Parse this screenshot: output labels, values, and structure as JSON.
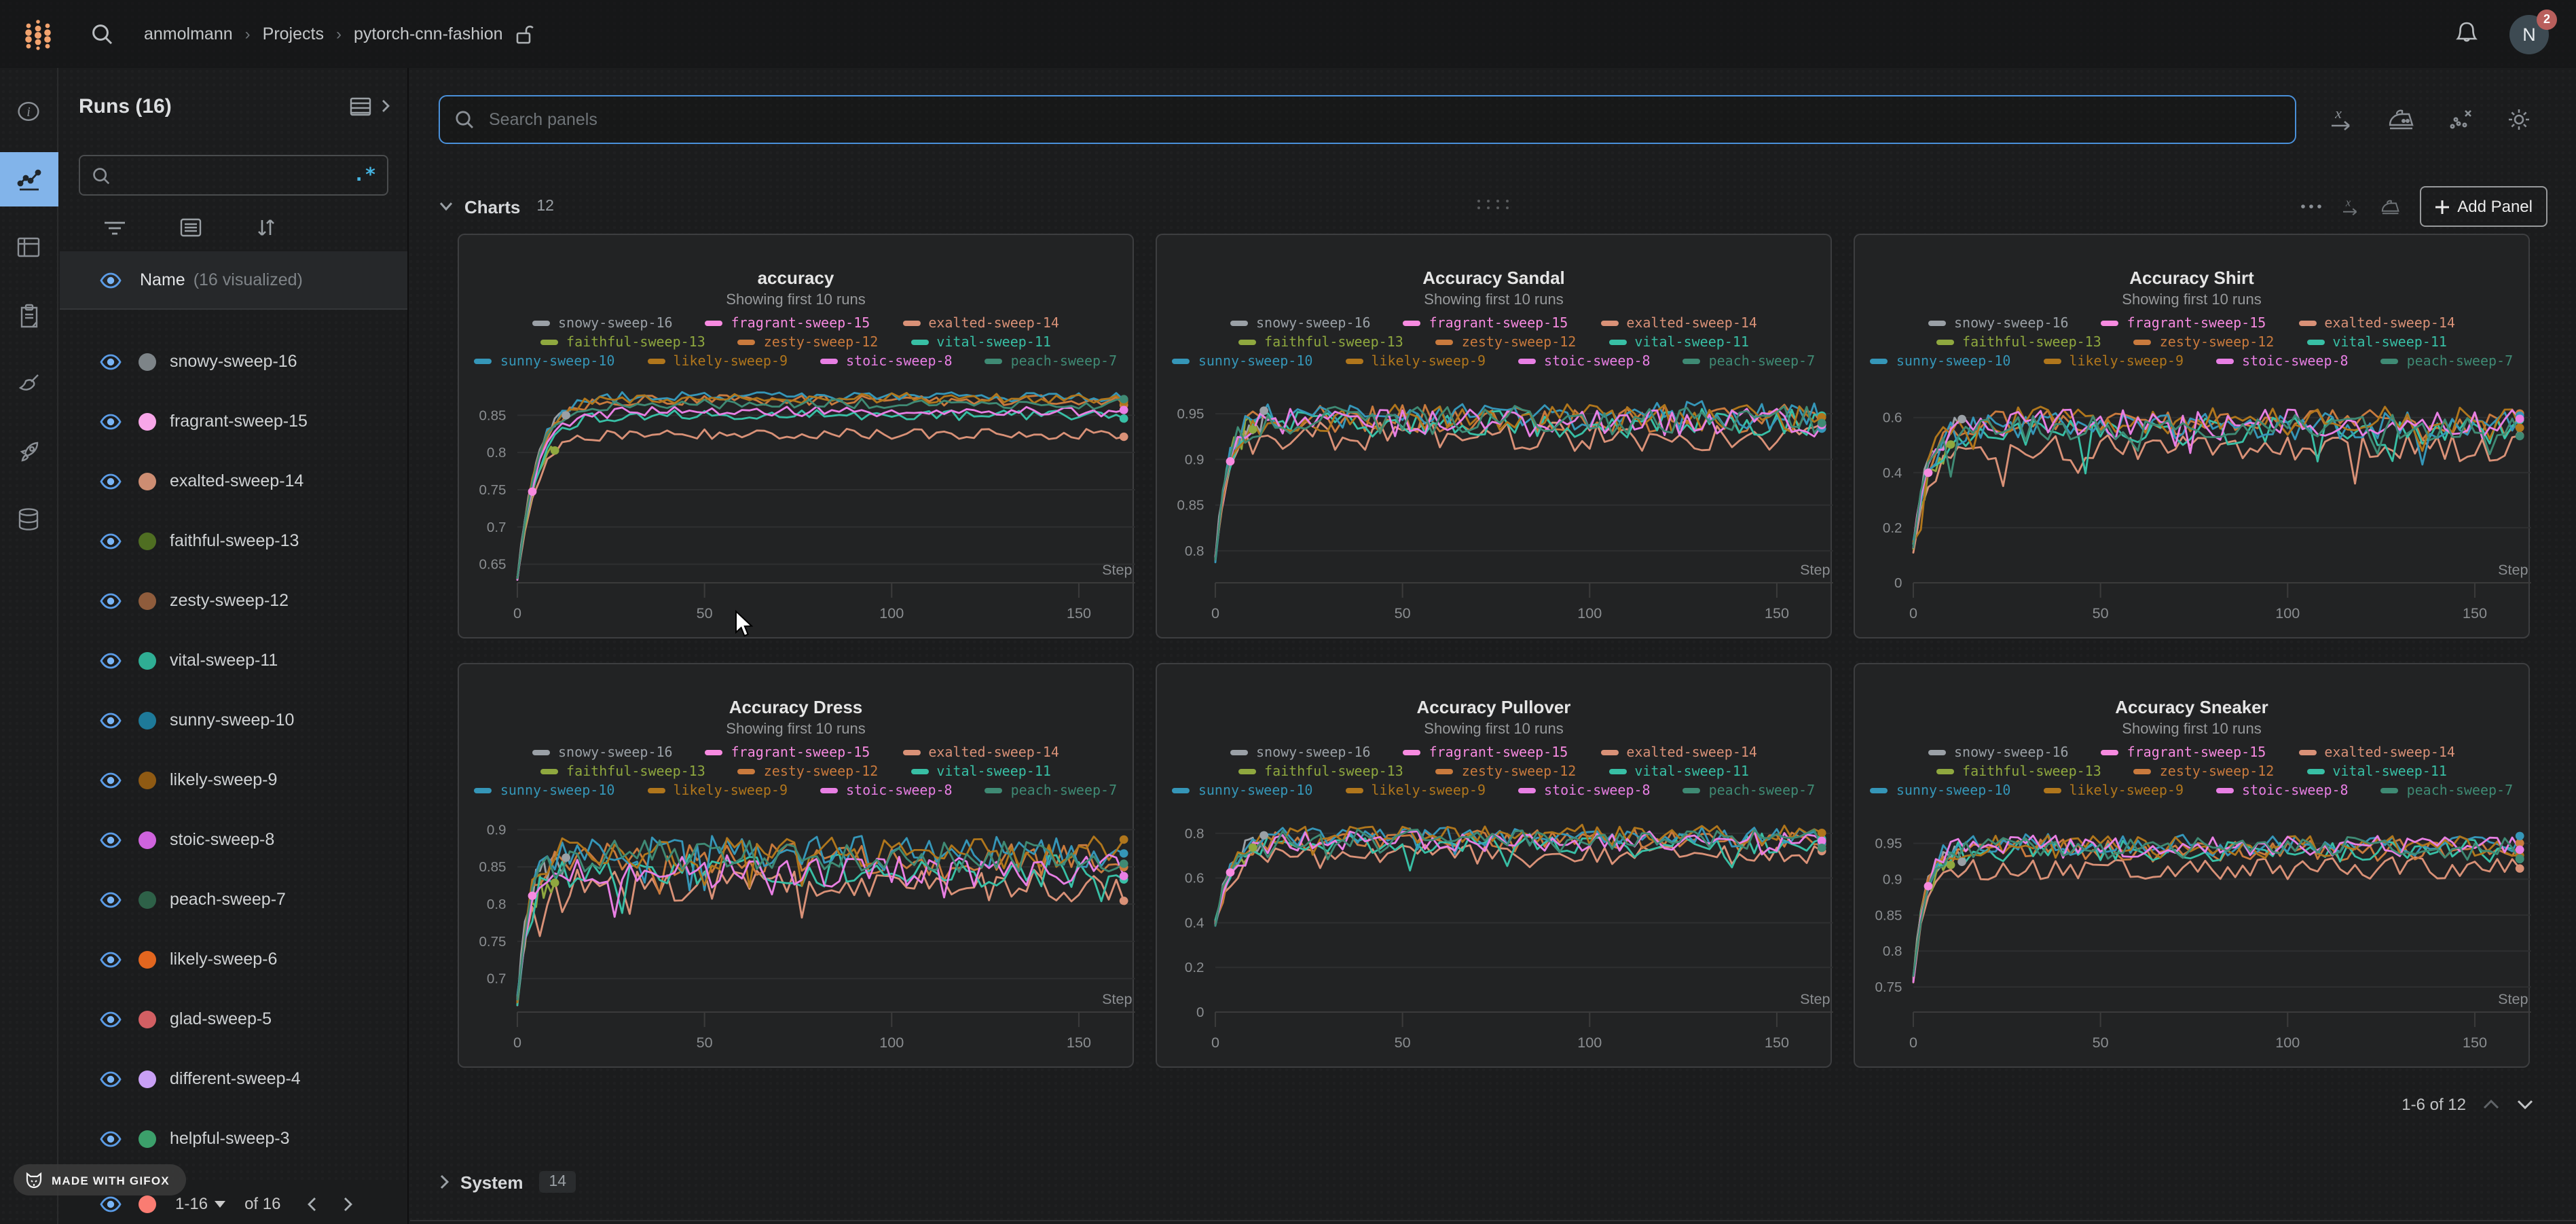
{
  "topbar": {
    "breadcrumb": [
      "anmolmann",
      "Projects",
      "pytorch-cnn-fashion"
    ],
    "notifications_badge": "2",
    "avatar_initial": "N"
  },
  "rail": {
    "items": [
      "overview",
      "workspace",
      "table",
      "reports",
      "sweeps",
      "launch",
      "artifacts"
    ],
    "active": "workspace",
    "active_color": "#82b4ea"
  },
  "sidebar": {
    "title": "Runs (16)",
    "regex_toggle": ".*",
    "name_header": {
      "label": "Name",
      "visualized": "(16 visualized)"
    },
    "runs": [
      {
        "name": "snowy-sweep-16",
        "color": "#7d8488"
      },
      {
        "name": "fragrant-sweep-15",
        "color": "#f8a6e9"
      },
      {
        "name": "exalted-sweep-14",
        "color": "#cd8d72"
      },
      {
        "name": "faithful-sweep-13",
        "color": "#4f6e22"
      },
      {
        "name": "zesty-sweep-12",
        "color": "#8f5c3c"
      },
      {
        "name": "vital-sweep-11",
        "color": "#2fae94"
      },
      {
        "name": "sunny-sweep-10",
        "color": "#1e7a99"
      },
      {
        "name": "likely-sweep-9",
        "color": "#8f5a13"
      },
      {
        "name": "stoic-sweep-8",
        "color": "#cf63dd"
      },
      {
        "name": "peach-sweep-7",
        "color": "#2e6148"
      },
      {
        "name": "likely-sweep-6",
        "color": "#e2661f"
      },
      {
        "name": "glad-sweep-5",
        "color": "#d25f63"
      },
      {
        "name": "different-sweep-4",
        "color": "#c9a0f5"
      },
      {
        "name": "helpful-sweep-3",
        "color": "#3ca06b"
      }
    ],
    "partial_run_color": "#fa7c72",
    "footer": {
      "page": "1-16",
      "of": "of 16"
    }
  },
  "main": {
    "search_placeholder": "Search panels",
    "sections": {
      "charts": {
        "label": "Charts",
        "count": "12",
        "add_panel_label": "Add Panel"
      },
      "system": {
        "label": "System",
        "count": "14"
      }
    },
    "pagination": "1-6 of 12"
  },
  "watermark": "MADE WITH GIFOX",
  "chart_data": {
    "type": "line",
    "xlabel": "Step",
    "x_ticks": [
      0,
      50,
      100,
      150
    ],
    "x_max": 165,
    "legend_position": "top",
    "grid": true,
    "runs": [
      "snowy-sweep-16",
      "fragrant-sweep-15",
      "exalted-sweep-14",
      "faithful-sweep-13",
      "zesty-sweep-12",
      "vital-sweep-11",
      "sunny-sweep-10",
      "likely-sweep-9",
      "stoic-sweep-8",
      "peach-sweep-7"
    ],
    "colors": [
      "#9aa0a6",
      "#f78ae0",
      "#d99177",
      "#8fa83f",
      "#c97a3d",
      "#38bfa5",
      "#3596b8",
      "#b0761c",
      "#e87fe4",
      "#3f8a74"
    ],
    "legend_rows": [
      [
        0,
        1,
        2
      ],
      [
        3,
        4,
        5
      ],
      [
        6,
        7,
        8,
        9
      ]
    ],
    "end_steps": [
      13,
      4,
      162,
      10,
      162,
      162,
      162,
      162,
      162,
      162
    ],
    "charts": [
      {
        "title": "accuracy",
        "subtitle": "Showing first 10 runs",
        "ylim": [
          0.625,
          0.895
        ],
        "yticks": [
          0.65,
          0.7,
          0.75,
          0.8,
          0.85
        ],
        "start": 0.63,
        "plateau": 0.855,
        "tau": 5,
        "noise": 0.007,
        "offsets": [
          0.02,
          -0.02,
          -0.03,
          -0.02,
          0.015,
          -0.005,
          0.02,
          0.018,
          0,
          0.01
        ]
      },
      {
        "title": "Accuracy Sandal",
        "subtitle": "Showing first 10 runs",
        "ylim": [
          0.765,
          0.985
        ],
        "yticks": [
          0.8,
          0.85,
          0.9,
          0.95
        ],
        "start": 0.79,
        "plateau": 0.94,
        "tau": 3,
        "noise": 0.016,
        "offsets": [
          0,
          -0.01,
          -0.015,
          0,
          0.005,
          0,
          0.008,
          0.005,
          0,
          0.003
        ]
      },
      {
        "title": "Accuracy Shirt",
        "subtitle": "Showing first 10 runs",
        "ylim": [
          0,
          0.73
        ],
        "yticks": [
          0,
          0.2,
          0.4,
          0.6
        ],
        "start": 0.14,
        "plateau": 0.55,
        "tau": 4,
        "noise": 0.05,
        "offsets": [
          0.05,
          0,
          -0.06,
          -0.03,
          0.03,
          0,
          0.02,
          0.04,
          0.03,
          0.01
        ]
      },
      {
        "title": "Accuracy Dress",
        "subtitle": "Showing first 10 runs",
        "ylim": [
          0.655,
          0.925
        ],
        "yticks": [
          0.7,
          0.75,
          0.8,
          0.85,
          0.9
        ],
        "start": 0.67,
        "plateau": 0.855,
        "tau": 3,
        "noise": 0.022,
        "offsets": [
          0.01,
          -0.01,
          -0.03,
          -0.01,
          0.005,
          -0.01,
          0.015,
          0.015,
          -0.01,
          0.01
        ]
      },
      {
        "title": "Accuracy Pullover",
        "subtitle": "Showing first 10 runs",
        "ylim": [
          0,
          0.9
        ],
        "yticks": [
          0,
          0.2,
          0.4,
          0.6,
          0.8
        ],
        "start": 0.4,
        "plateau": 0.755,
        "tau": 4,
        "noise": 0.045,
        "offsets": [
          0.02,
          -0.02,
          -0.05,
          -0.02,
          0.02,
          0,
          0.03,
          0.04,
          0.01,
          0.02
        ]
      },
      {
        "title": "Accuracy Sneaker",
        "subtitle": "Showing first 10 runs",
        "ylim": [
          0.715,
          0.995
        ],
        "yticks": [
          0.75,
          0.8,
          0.85,
          0.9,
          0.95
        ],
        "start": 0.76,
        "plateau": 0.935,
        "tau": 3,
        "noise": 0.016,
        "offsets": [
          0.005,
          -0.01,
          -0.02,
          -0.005,
          0.005,
          0.005,
          0.012,
          0.01,
          0.01,
          0.008
        ]
      }
    ]
  }
}
